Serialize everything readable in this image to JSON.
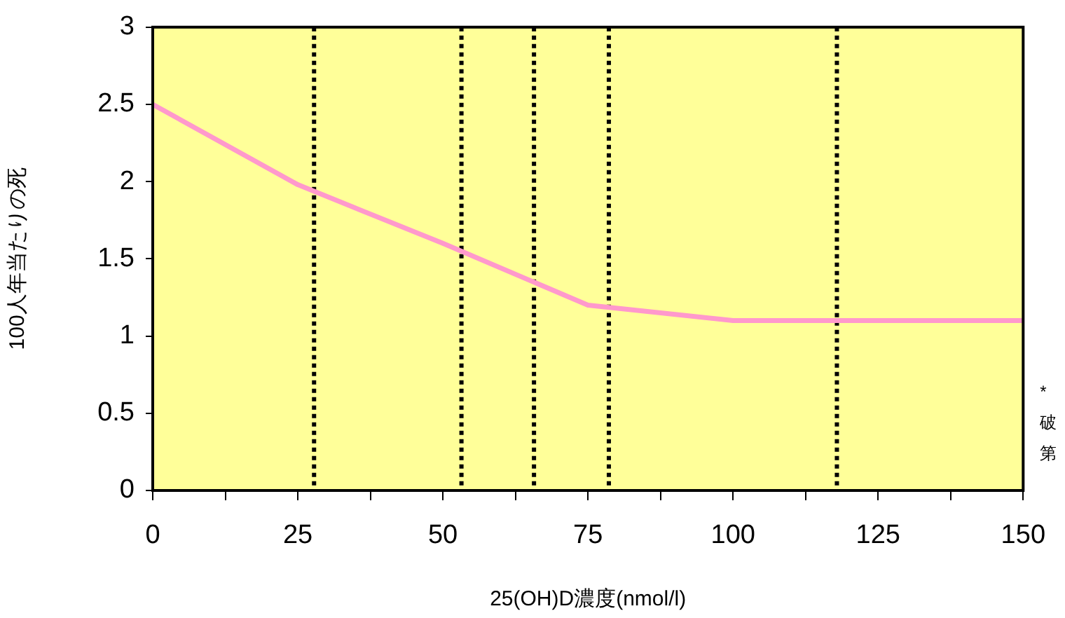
{
  "chart_data": {
    "type": "line",
    "xlabel": "25(OH)D濃度(nmol/l)",
    "ylabel": "100人年当たりの死",
    "x": [
      0,
      25,
      50,
      75,
      100,
      125,
      150
    ],
    "series": [
      {
        "color": "#ff99cc",
        "values": [
          2.5,
          1.98,
          1.6,
          1.2,
          1.1,
          1.1,
          1.1
        ]
      }
    ],
    "xlim": [
      0,
      150
    ],
    "xticks": [
      0,
      {
        "value": 12.5,
        "label": null
      },
      25,
      {
        "value": 37.5,
        "label": null
      },
      50,
      {
        "value": 62.5,
        "label": null
      },
      75,
      {
        "value": 87.5,
        "label": null
      },
      100,
      {
        "value": 112.5,
        "label": null
      },
      125,
      {
        "value": 137.5,
        "label": null
      },
      150
    ],
    "ylim": [
      0,
      3
    ],
    "yticks": [
      0,
      0.5,
      1,
      1.5,
      2,
      2.5,
      3
    ],
    "ref_lines": [
      {
        "axis": "x",
        "value": 27.8,
        "color": "#000000",
        "line_style": "dotted"
      },
      {
        "axis": "x",
        "value": 53.2,
        "color": "#000000",
        "line_style": "dotted"
      },
      {
        "axis": "x",
        "value": 65.7,
        "color": "#000000",
        "line_style": "dotted"
      },
      {
        "axis": "x",
        "value": 78.6,
        "color": "#000000",
        "line_style": "dotted"
      },
      {
        "axis": "x",
        "value": 117.9,
        "color": "#000000",
        "line_style": "dotted"
      }
    ],
    "annotations": [
      "*",
      "破",
      "第"
    ],
    "marker": "none",
    "line_style": "solid",
    "legend": false,
    "grid": false
  }
}
